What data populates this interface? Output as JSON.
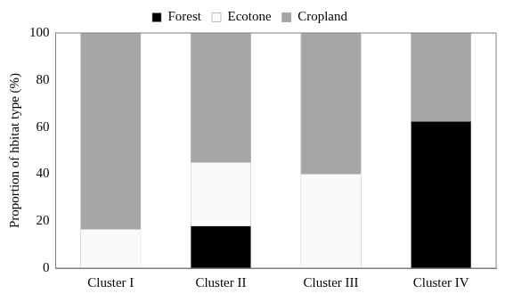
{
  "chart_data": {
    "type": "bar",
    "stacked": true,
    "legend": "top",
    "grid": false,
    "y_label": "Proportion of hbitat type (%)",
    "categories": [
      "Cluster I",
      "Cluster II",
      "Cluster III",
      "Cluster IV"
    ],
    "series": [
      {
        "name": "Forest",
        "color": "#000000",
        "values": [
          0,
          18,
          0,
          62.5
        ]
      },
      {
        "name": "Ecotone",
        "color": "#fafafa",
        "values": [
          16.5,
          27,
          40,
          0
        ]
      },
      {
        "name": "Cropland",
        "color": "#a6a6a6",
        "values": [
          83.5,
          55,
          60,
          37.5
        ]
      }
    ],
    "ylim": [
      0,
      100
    ],
    "yticks": [
      0,
      20,
      40,
      60,
      80,
      100
    ]
  }
}
